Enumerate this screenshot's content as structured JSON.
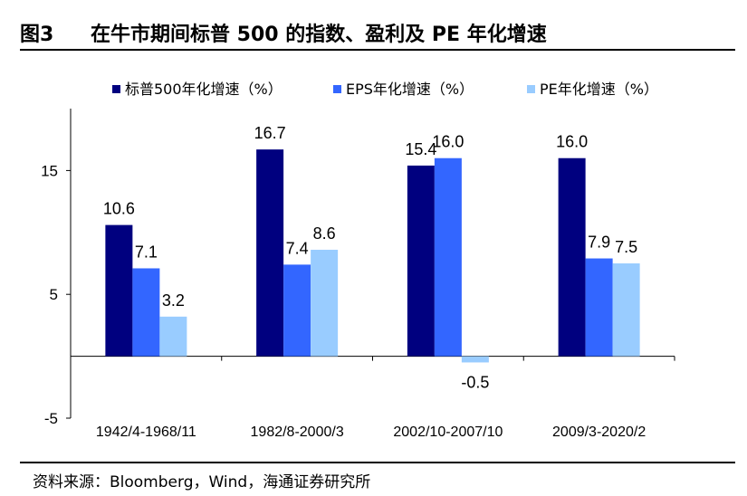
{
  "figure": {
    "label": "图3",
    "title": "在牛市期间标普 500 的指数、盈利及 PE 年化增速"
  },
  "source": "资料来源：Bloomberg，Wind，海通证券研究所",
  "chart_data": {
    "type": "bar",
    "categories": [
      "1942/4-1968/11",
      "1982/8-2000/3",
      "2002/10-2007/10",
      "2009/3-2020/2"
    ],
    "series": [
      {
        "name": "标普500年化增速（%）",
        "color": "#00007f",
        "values": [
          10.6,
          16.7,
          15.4,
          16.0
        ]
      },
      {
        "name": "EPS年化增速（%）",
        "color": "#3366ff",
        "values": [
          7.1,
          7.4,
          16.0,
          7.9
        ]
      },
      {
        "name": "PE年化增速（%）",
        "color": "#99ccff",
        "values": [
          3.2,
          8.6,
          -0.5,
          7.5
        ]
      }
    ],
    "value_labels": [
      [
        "10.6",
        "7.1",
        "3.2"
      ],
      [
        "16.7",
        "7.4",
        "8.6"
      ],
      [
        "15.4",
        "16.0",
        "-0.5"
      ],
      [
        "16.0",
        "7.9",
        "7.5"
      ]
    ],
    "yticks": [
      15,
      5,
      -5
    ],
    "ytick_labels": [
      "15",
      "5",
      "-5"
    ],
    "ylim": [
      -5,
      20
    ],
    "grid": false,
    "legend": "top"
  }
}
